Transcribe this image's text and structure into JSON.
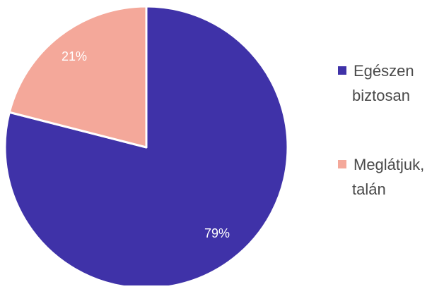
{
  "chart_data": {
    "type": "pie",
    "categories": [
      "Egészen biztosan",
      "Meglátjuk, talán"
    ],
    "values": [
      79,
      21
    ],
    "labels": [
      "79%",
      "21%"
    ],
    "colors": [
      "#3f32a8",
      "#f4a89a"
    ],
    "legend": {
      "placement": "right",
      "entries": [
        {
          "lines": [
            "Egészen",
            "biztosan"
          ],
          "color": "#3f32a8"
        },
        {
          "lines": [
            "Meglátjuk,",
            "talán"
          ],
          "color": "#f4a89a"
        }
      ]
    }
  }
}
